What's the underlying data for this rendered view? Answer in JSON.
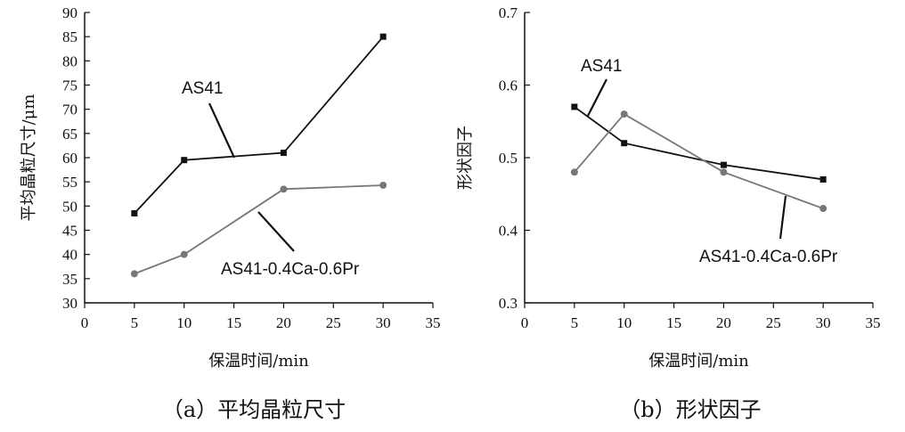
{
  "chart_data": [
    {
      "type": "line",
      "panel": "a",
      "caption": "（a）平均晶粒尺寸",
      "xlabel": "保温时间/min",
      "ylabel": "平均晶粒尺寸/μm",
      "xlim": [
        0,
        35
      ],
      "ylim": [
        30,
        90
      ],
      "xticks": [
        0,
        5,
        10,
        15,
        20,
        25,
        30,
        35
      ],
      "yticks": [
        30,
        35,
        40,
        45,
        50,
        55,
        60,
        65,
        70,
        75,
        80,
        85,
        90
      ],
      "grid": false,
      "series": [
        {
          "name": "AS41",
          "marker": "square",
          "color": "#111111",
          "x": [
            5,
            10,
            20,
            30
          ],
          "y": [
            48.5,
            59.5,
            61,
            85
          ]
        },
        {
          "name": "AS41-0.4Ca-0.6Pr",
          "marker": "circle",
          "color": "#777777",
          "x": [
            5,
            10,
            20,
            30
          ],
          "y": [
            36,
            40,
            53.5,
            54.3
          ]
        }
      ]
    },
    {
      "type": "line",
      "panel": "b",
      "caption": "（b）形状因子",
      "xlabel": "保温时间/min",
      "ylabel": "形状因子",
      "xlim": [
        0,
        35
      ],
      "ylim": [
        0.3,
        0.7
      ],
      "xticks": [
        0,
        5,
        10,
        15,
        20,
        25,
        30,
        35
      ],
      "yticks": [
        "0.3",
        "0.4",
        "0.5",
        "0.6",
        "0.7"
      ],
      "grid": false,
      "series": [
        {
          "name": "AS41",
          "marker": "square",
          "color": "#111111",
          "x": [
            5,
            10,
            20,
            30
          ],
          "y": [
            0.57,
            0.52,
            0.49,
            0.47
          ]
        },
        {
          "name": "AS41-0.4Ca-0.6Pr",
          "marker": "circle",
          "color": "#777777",
          "x": [
            5,
            10,
            20,
            30
          ],
          "y": [
            0.48,
            0.56,
            0.48,
            0.43
          ]
        }
      ]
    }
  ]
}
